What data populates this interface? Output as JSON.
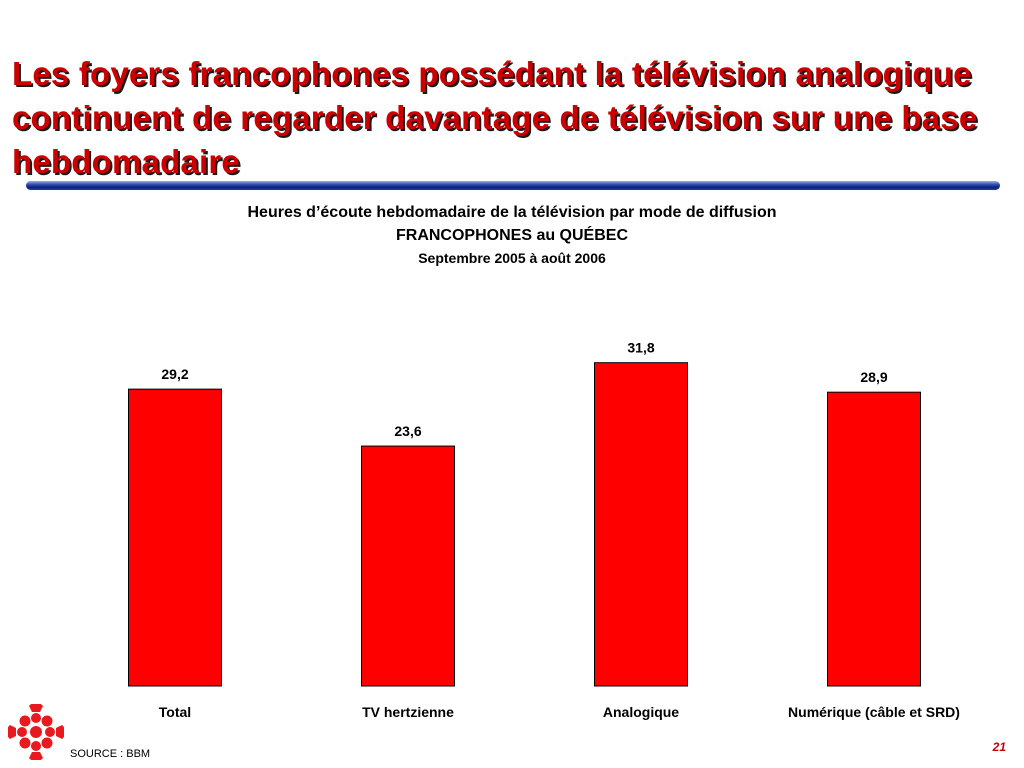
{
  "slide": {
    "title": "Les foyers francophones possédant la télévision analogique continuent de regarder davantage de télévision sur une base hebdomadaire",
    "source": "SOURCE : BBM",
    "page_number": "21"
  },
  "colors": {
    "title": "#cc0000",
    "bar": "#ff0000",
    "bar_outline": "#000000",
    "rule": "#1a2f8f"
  },
  "icons": {
    "logo": "cbc-radio-canada-gem-logo"
  },
  "chart_data": {
    "type": "bar",
    "title": "Heures d’écoute hebdomadaire de la télévision par mode de diffusion",
    "subtitle": "FRANCOPHONES au QUÉBEC",
    "period": "Septembre 2005 à août 2006",
    "categories": [
      "Total",
      "TV hertzienne",
      "Analogique",
      "Numérique (câble et SRD)"
    ],
    "values": [
      29.2,
      23.6,
      31.8,
      28.9
    ],
    "value_labels": [
      "29,2",
      "23,6",
      "31,8",
      "28,9"
    ],
    "ylim": [
      0,
      36
    ],
    "grid": false,
    "legend": "none"
  }
}
